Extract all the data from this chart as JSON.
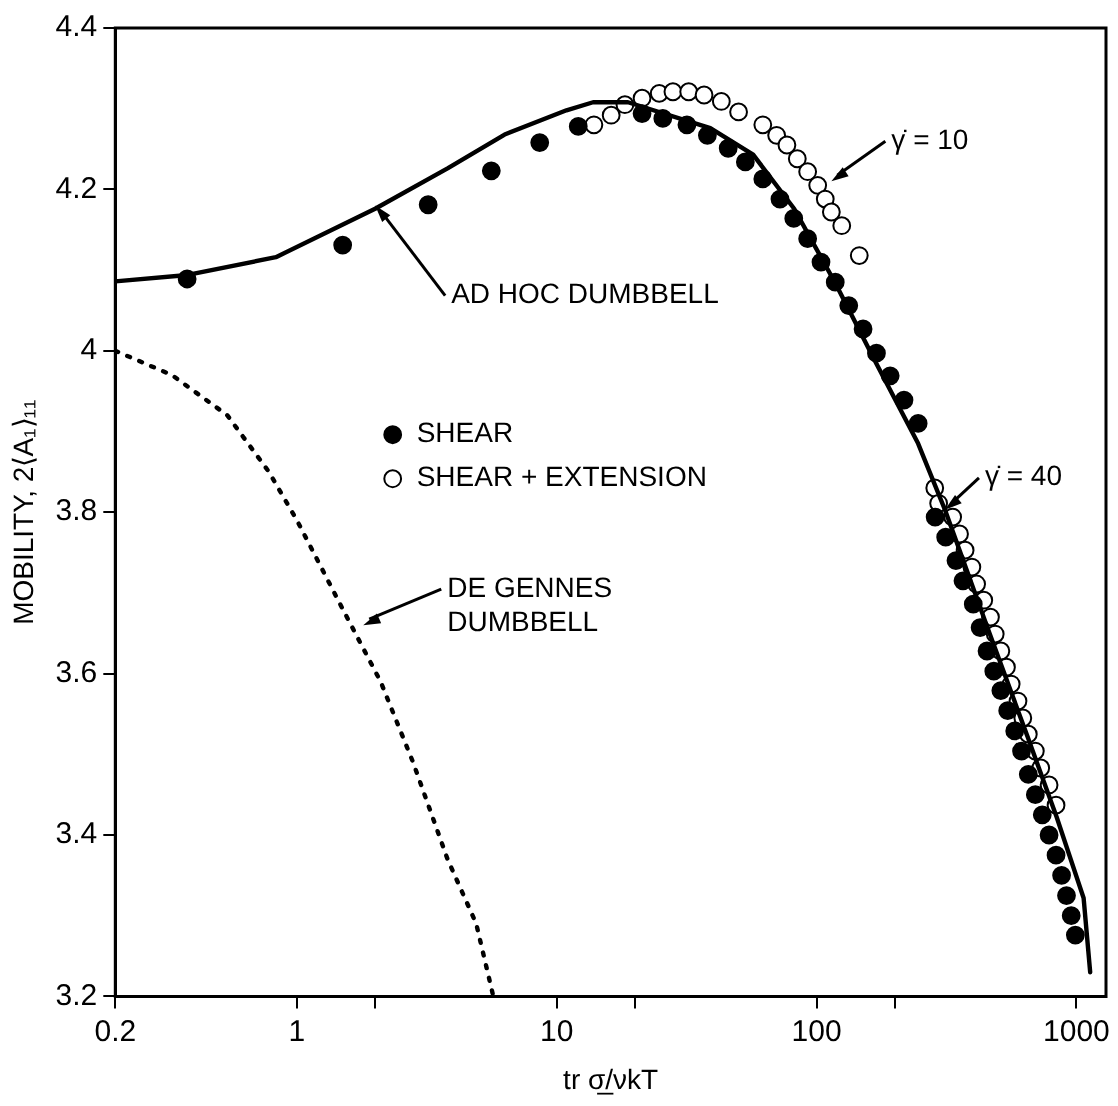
{
  "chart_data": {
    "type": "scatter",
    "xlabel": "tr σ̲/νkT",
    "ylabel": "MOBILITY, 2⟨A₁⟩₁₁",
    "log": "x",
    "xlim": [
      0.2,
      1300
    ],
    "ylim": [
      3.2,
      4.4
    ],
    "xticks": [
      0.2,
      1,
      {
        "value": 2,
        "label": null
      },
      10,
      {
        "value": 20,
        "label": null
      },
      100,
      {
        "value": 200,
        "label": null
      },
      1000
    ],
    "yticks": [
      3.2,
      3.4,
      3.6,
      3.8,
      4.0,
      4.2,
      4.4
    ],
    "grid": false,
    "legend": "left",
    "marker": "circle",
    "series": [
      {
        "type": "line",
        "line_style": "solid",
        "marker": "none",
        "color": "#000000",
        "x": [
          0.2,
          0.38,
          0.83,
          2.0,
          3.8,
          6.3,
          10.9,
          13.8,
          18.8,
          39,
          57,
          82,
          118,
          170,
          246,
          312,
          450,
          650,
          840,
          1066,
          1130
        ],
        "values": [
          4.086,
          4.094,
          4.116,
          4.176,
          4.226,
          4.268,
          4.298,
          4.308,
          4.308,
          4.276,
          4.243,
          4.176,
          4.084,
          3.984,
          3.885,
          3.803,
          3.661,
          3.521,
          3.422,
          3.322,
          3.23
        ]
      },
      {
        "type": "line",
        "line_style": "dotted",
        "marker": "none",
        "color": "#000000",
        "x": [
          0.2,
          0.33,
          0.54,
          0.78,
          1.0,
          1.5,
          2.1,
          2.8,
          3.8,
          4.9,
          5.7
        ],
        "values": [
          4.0,
          3.97,
          3.92,
          3.85,
          3.79,
          3.68,
          3.59,
          3.49,
          3.37,
          3.29,
          3.2
        ]
      },
      {
        "name": "SHEAR",
        "color": "#000000",
        "x": [
          0.378,
          1.5,
          3.2,
          5.6,
          8.6,
          12.1,
          21.3,
          25.6,
          31.7,
          38,
          45.7,
          53.2,
          62.1,
          72.3,
          81.7,
          92.4,
          104,
          118,
          133,
          151,
          170,
          192,
          217,
          246,
          286,
          314,
          344,
          366,
          401,
          426,
          453,
          481,
          512,
          544,
          579,
          615,
          653,
          695,
          739,
          785,
          835,
          877,
          916,
          955,
          991
        ],
        "values": [
          4.089,
          4.131,
          4.181,
          4.223,
          4.258,
          4.278,
          4.294,
          4.288,
          4.28,
          4.267,
          4.251,
          4.234,
          4.213,
          4.188,
          4.164,
          4.139,
          4.11,
          4.085,
          4.056,
          4.027,
          3.997,
          3.969,
          3.939,
          3.91,
          3.794,
          3.769,
          3.74,
          3.715,
          3.686,
          3.657,
          3.628,
          3.603,
          3.579,
          3.554,
          3.529,
          3.504,
          3.475,
          3.45,
          3.425,
          3.4,
          3.375,
          3.35,
          3.325,
          3.3,
          3.276
        ]
      },
      {
        "name": "SHEAR + EXTENSION",
        "color": "#ffffff",
        "x": [
          13.9,
          16.2,
          18.3,
          21.3,
          24.8,
          28,
          32.2,
          36.9,
          43,
          50.1,
          62.1,
          70.2,
          76.9,
          84.3,
          92.4,
          101,
          108,
          114,
          125,
          146
        ],
        "values": [
          4.28,
          4.292,
          4.305,
          4.313,
          4.319,
          4.321,
          4.321,
          4.317,
          4.309,
          4.296,
          4.28,
          4.267,
          4.255,
          4.238,
          4.222,
          4.205,
          4.188,
          4.172,
          4.155,
          4.118
        ]
      },
      {
        "color": "#ffffff",
        "x": [
          285,
          295,
          334,
          355,
          373,
          396,
          413,
          440,
          467,
          487,
          512,
          538,
          561,
          596,
          622,
          653,
          695,
          729,
          785,
          835
        ],
        "values": [
          3.83,
          3.811,
          3.794,
          3.773,
          3.753,
          3.732,
          3.711,
          3.691,
          3.67,
          3.649,
          3.628,
          3.608,
          3.587,
          3.566,
          3.545,
          3.525,
          3.504,
          3.483,
          3.462,
          3.437
        ]
      }
    ],
    "annotations": [
      {
        "text": "AD HOC DUMBBELL",
        "x": 2.0,
        "y": 4.18
      },
      {
        "text": "DE GENNES DUMBBELL",
        "x": 1.8,
        "y": 3.66
      },
      {
        "text": "γ̇ = 10",
        "x": 114,
        "y": 4.21
      },
      {
        "text": "γ̇ = 40",
        "x": 312,
        "y": 3.803
      }
    ]
  }
}
